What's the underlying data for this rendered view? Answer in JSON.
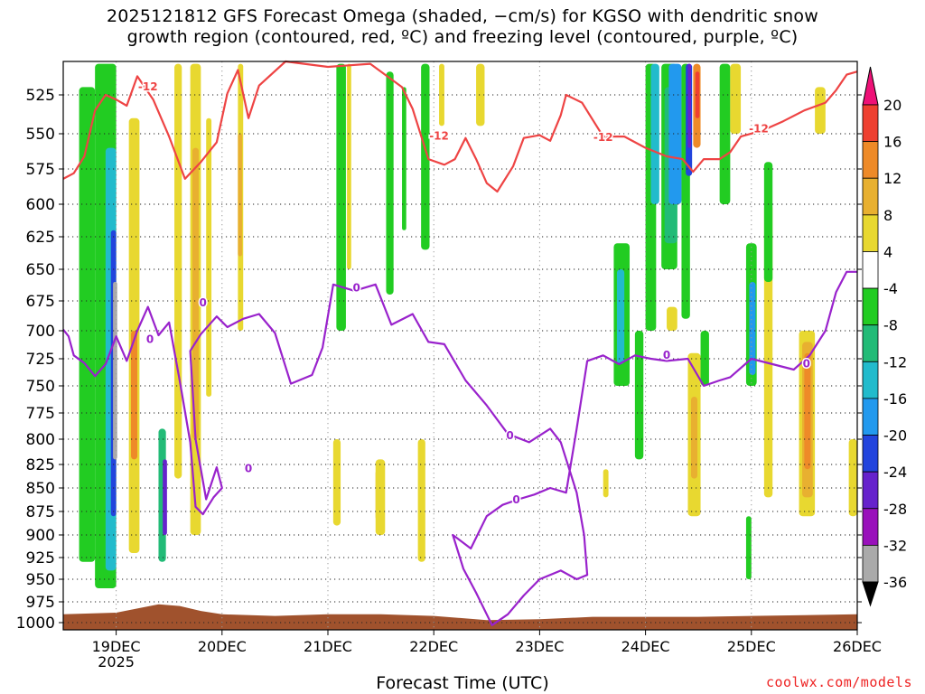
{
  "title_line1": "2025121812 GFS Forecast Omega (shaded, −cm/s) for KGSO with dendritic snow",
  "title_line2": "growth region (contoured, red, ºC) and freezing level (contoured, purple, ºC)",
  "credit": "coolwx.com/models",
  "colors": {
    "omega_pos_4_8": "#e8d830",
    "omega_pos_8_12": "#e8b030",
    "omega_pos_12_16": "#ee8a28",
    "omega_pos_16_20": "#ee4030",
    "omega_neg_4_8": "#22cc22",
    "omega_neg_8_12": "#22bb77",
    "omega_neg_12_16": "#22bbcc",
    "omega_neg_16_20": "#2299ee",
    "omega_neg_20_24": "#2244dd",
    "omega_neg_24_28": "#6622cc",
    "omega_neg_28_32": "#9911bb",
    "omega_neg_32_36": "#aaaaaa",
    "terrain": "#a0522d",
    "dgz_contour": "#ee4444",
    "freezing_contour": "#9922cc"
  },
  "chart_data": {
    "type": "heatmap",
    "title": "2025121812 GFS Forecast Omega (shaded, −cm/s) for KGSO with dendritic snow growth region (contoured, red, ºC) and freezing level (contoured, purple, ºC)",
    "xlabel": "Forecast Time (UTC)",
    "ylabel": "Pressure (hPa)",
    "x_range_days": [
      18.5,
      26.0
    ],
    "x_ticks": [
      {
        "value": 19,
        "label": "19DEC",
        "sublabel": "2025"
      },
      {
        "value": 20,
        "label": "20DEC"
      },
      {
        "value": 21,
        "label": "21DEC"
      },
      {
        "value": 22,
        "label": "22DEC"
      },
      {
        "value": 23,
        "label": "23DEC"
      },
      {
        "value": 24,
        "label": "24DEC"
      },
      {
        "value": 25,
        "label": "25DEC"
      },
      {
        "value": 26,
        "label": "26DEC"
      }
    ],
    "y_range_hpa": [
      502,
      1010
    ],
    "y_ticks": [
      525,
      550,
      575,
      600,
      625,
      650,
      675,
      700,
      725,
      750,
      775,
      800,
      825,
      850,
      875,
      900,
      925,
      950,
      975,
      1000
    ],
    "colorbar": {
      "labels": [
        "20",
        "16",
        "12",
        "8",
        "4",
        "-4",
        "-8",
        "-12",
        "-16",
        "-20",
        "-24",
        "-28",
        "-32",
        "-36"
      ],
      "levels": [
        20,
        16,
        12,
        8,
        4,
        -4,
        -8,
        -12,
        -16,
        -20,
        -24,
        -28,
        -32,
        -36
      ]
    },
    "contour_labels": {
      "dgz": "-12",
      "freezing": "0"
    },
    "dgz_minus12_line": [
      [
        18.5,
        582
      ],
      [
        18.6,
        578
      ],
      [
        18.7,
        566
      ],
      [
        18.8,
        535
      ],
      [
        18.9,
        525
      ],
      [
        19.0,
        528
      ],
      [
        19.1,
        532
      ],
      [
        19.2,
        513
      ],
      [
        19.35,
        528
      ],
      [
        19.5,
        552
      ],
      [
        19.65,
        582
      ],
      [
        19.8,
        570
      ],
      [
        19.95,
        556
      ],
      [
        20.05,
        524
      ],
      [
        20.15,
        509
      ],
      [
        20.25,
        540
      ],
      [
        20.35,
        519
      ],
      [
        20.6,
        502
      ],
      [
        21.0,
        507
      ],
      [
        21.4,
        505
      ],
      [
        21.7,
        520
      ],
      [
        21.8,
        534
      ],
      [
        21.95,
        568
      ],
      [
        22.1,
        572
      ],
      [
        22.2,
        568
      ],
      [
        22.3,
        553
      ],
      [
        22.4,
        568
      ],
      [
        22.5,
        585
      ],
      [
        22.6,
        591
      ],
      [
        22.75,
        573
      ],
      [
        22.85,
        553
      ],
      [
        23.0,
        551
      ],
      [
        23.1,
        555
      ],
      [
        23.2,
        538
      ],
      [
        23.25,
        525
      ],
      [
        23.4,
        530
      ],
      [
        23.6,
        552
      ],
      [
        23.8,
        552
      ],
      [
        24.0,
        560
      ],
      [
        24.2,
        566
      ],
      [
        24.35,
        568
      ],
      [
        24.45,
        577
      ],
      [
        24.55,
        568
      ],
      [
        24.7,
        568
      ],
      [
        24.8,
        563
      ],
      [
        24.9,
        552
      ],
      [
        25.1,
        548
      ],
      [
        25.3,
        542
      ],
      [
        25.5,
        535
      ],
      [
        25.7,
        530
      ],
      [
        25.8,
        522
      ],
      [
        25.9,
        512
      ],
      [
        26.0,
        510
      ]
    ],
    "freezing_0_line": [
      [
        18.5,
        699
      ],
      [
        18.55,
        705
      ],
      [
        18.6,
        722
      ],
      [
        18.7,
        729
      ],
      [
        18.8,
        741
      ],
      [
        18.9,
        730
      ],
      [
        19.0,
        705
      ],
      [
        19.1,
        727
      ],
      [
        19.2,
        700
      ],
      [
        19.3,
        680
      ],
      [
        19.4,
        704
      ],
      [
        19.5,
        693
      ],
      [
        19.6,
        745
      ],
      [
        19.7,
        803
      ],
      [
        19.75,
        870
      ],
      [
        19.82,
        878
      ],
      [
        19.92,
        860
      ],
      [
        20.0,
        850
      ],
      [
        19.95,
        828
      ],
      [
        19.85,
        862
      ],
      [
        19.75,
        800
      ],
      [
        19.7,
        718
      ],
      [
        19.8,
        703
      ],
      [
        19.95,
        688
      ],
      [
        20.05,
        697
      ],
      [
        20.2,
        690
      ],
      [
        20.35,
        686
      ],
      [
        20.5,
        702
      ],
      [
        20.65,
        748
      ],
      [
        20.85,
        740
      ],
      [
        20.95,
        715
      ],
      [
        21.05,
        662
      ],
      [
        21.25,
        667
      ],
      [
        21.45,
        662
      ],
      [
        21.6,
        695
      ],
      [
        21.8,
        686
      ],
      [
        21.95,
        710
      ],
      [
        22.1,
        712
      ],
      [
        22.3,
        745
      ],
      [
        22.5,
        768
      ],
      [
        22.7,
        795
      ],
      [
        22.9,
        803
      ],
      [
        23.1,
        790
      ],
      [
        23.2,
        803
      ],
      [
        23.35,
        855
      ],
      [
        23.42,
        900
      ],
      [
        23.45,
        945
      ],
      [
        23.35,
        950
      ],
      [
        23.2,
        940
      ],
      [
        23.0,
        950
      ],
      [
        22.85,
        968
      ],
      [
        22.7,
        990
      ],
      [
        22.55,
        1003
      ],
      [
        22.4,
        965
      ],
      [
        22.28,
        938
      ],
      [
        22.18,
        900
      ],
      [
        22.35,
        915
      ],
      [
        22.5,
        880
      ],
      [
        22.65,
        868
      ],
      [
        22.8,
        862
      ],
      [
        22.95,
        857
      ],
      [
        23.1,
        850
      ],
      [
        23.25,
        855
      ],
      [
        23.35,
        790
      ],
      [
        23.45,
        727
      ],
      [
        23.6,
        722
      ],
      [
        23.75,
        730
      ],
      [
        23.9,
        722
      ],
      [
        24.05,
        725
      ],
      [
        24.2,
        727
      ],
      [
        24.4,
        725
      ],
      [
        24.55,
        750
      ],
      [
        24.7,
        745
      ],
      [
        24.8,
        742
      ],
      [
        25.0,
        725
      ],
      [
        25.2,
        730
      ],
      [
        25.4,
        735
      ],
      [
        25.55,
        722
      ],
      [
        25.7,
        700
      ],
      [
        25.8,
        668
      ],
      [
        25.9,
        652
      ],
      [
        26.0,
        652
      ]
    ],
    "terrain_top_hpa": [
      [
        18.5,
        990
      ],
      [
        19.0,
        988
      ],
      [
        19.2,
        983
      ],
      [
        19.4,
        978
      ],
      [
        19.6,
        980
      ],
      [
        19.8,
        986
      ],
      [
        20.0,
        990
      ],
      [
        20.5,
        992
      ],
      [
        21.0,
        990
      ],
      [
        21.5,
        990
      ],
      [
        22.0,
        992
      ],
      [
        22.5,
        997
      ],
      [
        23.0,
        996
      ],
      [
        23.5,
        993
      ],
      [
        24.0,
        993
      ],
      [
        24.5,
        993
      ],
      [
        25.0,
        992
      ],
      [
        25.5,
        991
      ],
      [
        26.0,
        990
      ]
    ],
    "omega_regions": [
      {
        "x": [
          18.65,
          18.8
        ],
        "p": [
          520,
          930
        ],
        "c": "omega_neg_4_8"
      },
      {
        "x": [
          18.8,
          19.0
        ],
        "p": [
          505,
          960
        ],
        "c": "omega_neg_4_8"
      },
      {
        "x": [
          18.9,
          19.0
        ],
        "p": [
          560,
          940
        ],
        "c": "omega_neg_12_16"
      },
      {
        "x": [
          18.95,
          19.0
        ],
        "p": [
          620,
          880
        ],
        "c": "omega_neg_20_24"
      },
      {
        "x": [
          18.97,
          19.01
        ],
        "p": [
          660,
          820
        ],
        "c": "omega_neg_32_36"
      },
      {
        "x": [
          19.12,
          19.22
        ],
        "p": [
          540,
          920
        ],
        "c": "omega_pos_4_8"
      },
      {
        "x": [
          19.14,
          19.2
        ],
        "p": [
          700,
          820
        ],
        "c": "omega_pos_12_16"
      },
      {
        "x": [
          19.4,
          19.47
        ],
        "p": [
          790,
          930
        ],
        "c": "omega_neg_8_12"
      },
      {
        "x": [
          19.44,
          19.48
        ],
        "p": [
          820,
          900
        ],
        "c": "omega_neg_24_28"
      },
      {
        "x": [
          19.55,
          19.62
        ],
        "p": [
          505,
          840
        ],
        "c": "omega_pos_4_8"
      },
      {
        "x": [
          19.7,
          19.8
        ],
        "p": [
          505,
          900
        ],
        "c": "omega_pos_4_8"
      },
      {
        "x": [
          19.72,
          19.78
        ],
        "p": [
          560,
          800
        ],
        "c": "omega_pos_8_12"
      },
      {
        "x": [
          19.85,
          19.9
        ],
        "p": [
          540,
          760
        ],
        "c": "omega_pos_4_8"
      },
      {
        "x": [
          20.15,
          20.2
        ],
        "p": [
          505,
          700
        ],
        "c": "omega_pos_4_8"
      },
      {
        "x": [
          20.15,
          20.19
        ],
        "p": [
          550,
          640
        ],
        "c": "omega_pos_8_12"
      },
      {
        "x": [
          21.08,
          21.17
        ],
        "p": [
          505,
          700
        ],
        "c": "omega_neg_4_8"
      },
      {
        "x": [
          21.18,
          21.22
        ],
        "p": [
          505,
          650
        ],
        "c": "omega_pos_4_8"
      },
      {
        "x": [
          21.55,
          21.62
        ],
        "p": [
          510,
          670
        ],
        "c": "omega_neg_4_8"
      },
      {
        "x": [
          21.7,
          21.74
        ],
        "p": [
          520,
          620
        ],
        "c": "omega_neg_4_8"
      },
      {
        "x": [
          21.88,
          21.96
        ],
        "p": [
          505,
          635
        ],
        "c": "omega_neg_4_8"
      },
      {
        "x": [
          22.05,
          22.1
        ],
        "p": [
          505,
          545
        ],
        "c": "omega_pos_4_8"
      },
      {
        "x": [
          22.4,
          22.48
        ],
        "p": [
          505,
          545
        ],
        "c": "omega_pos_4_8"
      },
      {
        "x": [
          21.05,
          21.12
        ],
        "p": [
          800,
          890
        ],
        "c": "omega_pos_4_8"
      },
      {
        "x": [
          21.45,
          21.52
        ],
        "p": [
          830,
          885
        ],
        "c": "omega_pos_8_12"
      },
      {
        "x": [
          21.45,
          21.54
        ],
        "p": [
          820,
          900
        ],
        "c": "omega_pos_4_8"
      },
      {
        "x": [
          21.85,
          21.92
        ],
        "p": [
          800,
          930
        ],
        "c": "omega_pos_4_8"
      },
      {
        "x": [
          23.6,
          23.65
        ],
        "p": [
          830,
          860
        ],
        "c": "omega_pos_4_8"
      },
      {
        "x": [
          23.7,
          23.85
        ],
        "p": [
          630,
          750
        ],
        "c": "omega_neg_4_8"
      },
      {
        "x": [
          23.73,
          23.8
        ],
        "p": [
          650,
          730
        ],
        "c": "omega_neg_12_16"
      },
      {
        "x": [
          23.9,
          23.98
        ],
        "p": [
          700,
          820
        ],
        "c": "omega_neg_4_8"
      },
      {
        "x": [
          24.0,
          24.1
        ],
        "p": [
          505,
          700
        ],
        "c": "omega_neg_4_8"
      },
      {
        "x": [
          24.05,
          24.13
        ],
        "p": [
          505,
          600
        ],
        "c": "omega_neg_12_16"
      },
      {
        "x": [
          24.15,
          24.3
        ],
        "p": [
          505,
          650
        ],
        "c": "omega_neg_4_8"
      },
      {
        "x": [
          24.18,
          24.3
        ],
        "p": [
          520,
          630
        ],
        "c": "omega_neg_8_12"
      },
      {
        "x": [
          24.22,
          24.34
        ],
        "p": [
          505,
          600
        ],
        "c": "omega_neg_16_20"
      },
      {
        "x": [
          24.34,
          24.42
        ],
        "p": [
          505,
          690
        ],
        "c": "omega_neg_4_8"
      },
      {
        "x": [
          24.38,
          24.44
        ],
        "p": [
          505,
          580
        ],
        "c": "omega_neg_20_24"
      },
      {
        "x": [
          24.4,
          24.43
        ],
        "p": [
          505,
          560
        ],
        "c": "omega_neg_24_28"
      },
      {
        "x": [
          24.45,
          24.52
        ],
        "p": [
          505,
          560
        ],
        "c": "omega_pos_12_16"
      },
      {
        "x": [
          24.47,
          24.51
        ],
        "p": [
          510,
          540
        ],
        "c": "omega_pos_16_20"
      },
      {
        "x": [
          24.2,
          24.3
        ],
        "p": [
          680,
          700
        ],
        "c": "omega_pos_4_8"
      },
      {
        "x": [
          24.4,
          24.52
        ],
        "p": [
          720,
          880
        ],
        "c": "omega_pos_4_8"
      },
      {
        "x": [
          24.43,
          24.49
        ],
        "p": [
          760,
          840
        ],
        "c": "omega_pos_8_12"
      },
      {
        "x": [
          24.52,
          24.6
        ],
        "p": [
          700,
          750
        ],
        "c": "omega_neg_4_8"
      },
      {
        "x": [
          24.7,
          24.8
        ],
        "p": [
          505,
          600
        ],
        "c": "omega_neg_4_8"
      },
      {
        "x": [
          24.8,
          24.9
        ],
        "p": [
          505,
          550
        ],
        "c": "omega_pos_4_8"
      },
      {
        "x": [
          24.95,
          25.05
        ],
        "p": [
          630,
          750
        ],
        "c": "omega_neg_4_8"
      },
      {
        "x": [
          24.98,
          25.04
        ],
        "p": [
          660,
          740
        ],
        "c": "omega_neg_16_20"
      },
      {
        "x": [
          24.95,
          25.0
        ],
        "p": [
          880,
          950
        ],
        "c": "omega_neg_4_8"
      },
      {
        "x": [
          25.12,
          25.2
        ],
        "p": [
          600,
          860
        ],
        "c": "omega_pos_4_8"
      },
      {
        "x": [
          25.12,
          25.2
        ],
        "p": [
          570,
          660
        ],
        "c": "omega_neg_4_8"
      },
      {
        "x": [
          25.45,
          25.6
        ],
        "p": [
          700,
          880
        ],
        "c": "omega_pos_4_8"
      },
      {
        "x": [
          25.48,
          25.58
        ],
        "p": [
          710,
          860
        ],
        "c": "omega_pos_8_12"
      },
      {
        "x": [
          25.5,
          25.56
        ],
        "p": [
          720,
          830
        ],
        "c": "omega_pos_12_16"
      },
      {
        "x": [
          25.6,
          25.7
        ],
        "p": [
          520,
          550
        ],
        "c": "omega_pos_4_8"
      },
      {
        "x": [
          25.92,
          26.0
        ],
        "p": [
          800,
          880
        ],
        "c": "omega_pos_4_8"
      }
    ]
  }
}
